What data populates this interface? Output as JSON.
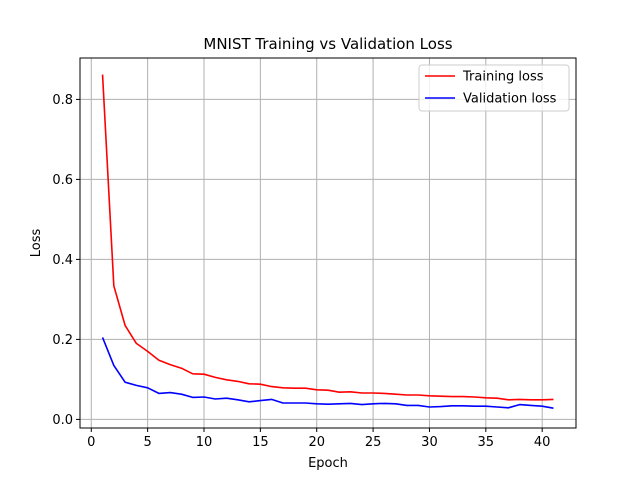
{
  "chart_data": {
    "type": "line",
    "title": "MNIST Training vs Validation Loss",
    "xlabel": "Epoch",
    "ylabel": "Loss",
    "xlim": [
      -1,
      43
    ],
    "ylim": [
      -0.0215,
      0.9035
    ],
    "xticks": [
      0,
      5,
      10,
      15,
      20,
      25,
      30,
      35,
      40
    ],
    "yticks": [
      0.0,
      0.2,
      0.4,
      0.6,
      0.8
    ],
    "xtick_labels": [
      "0",
      "5",
      "10",
      "15",
      "20",
      "25",
      "30",
      "35",
      "40"
    ],
    "ytick_labels": [
      "0.0",
      "0.2",
      "0.4",
      "0.6",
      "0.8"
    ],
    "grid": true,
    "legend_position": "top-right",
    "x": [
      1,
      2,
      3,
      4,
      5,
      6,
      7,
      8,
      9,
      10,
      11,
      12,
      13,
      14,
      15,
      16,
      17,
      18,
      19,
      20,
      21,
      22,
      23,
      24,
      25,
      26,
      27,
      28,
      29,
      30,
      31,
      32,
      33,
      34,
      35,
      36,
      37,
      38,
      39,
      40,
      41
    ],
    "series": [
      {
        "name": "Training loss",
        "color": "#ff0000",
        "values": [
          0.862,
          0.334,
          0.235,
          0.19,
          0.17,
          0.148,
          0.137,
          0.128,
          0.114,
          0.113,
          0.105,
          0.099,
          0.095,
          0.089,
          0.088,
          0.082,
          0.079,
          0.078,
          0.078,
          0.074,
          0.073,
          0.068,
          0.069,
          0.066,
          0.066,
          0.065,
          0.063,
          0.061,
          0.061,
          0.059,
          0.058,
          0.057,
          0.057,
          0.056,
          0.054,
          0.053,
          0.049,
          0.05,
          0.049,
          0.049,
          0.05
        ]
      },
      {
        "name": "Validation loss",
        "color": "#0000ff",
        "values": [
          0.205,
          0.135,
          0.093,
          0.085,
          0.079,
          0.065,
          0.067,
          0.063,
          0.055,
          0.056,
          0.051,
          0.053,
          0.049,
          0.044,
          0.047,
          0.05,
          0.041,
          0.041,
          0.041,
          0.039,
          0.038,
          0.039,
          0.04,
          0.037,
          0.039,
          0.04,
          0.039,
          0.035,
          0.035,
          0.031,
          0.032,
          0.034,
          0.034,
          0.033,
          0.033,
          0.031,
          0.029,
          0.037,
          0.035,
          0.033,
          0.028
        ]
      }
    ]
  }
}
